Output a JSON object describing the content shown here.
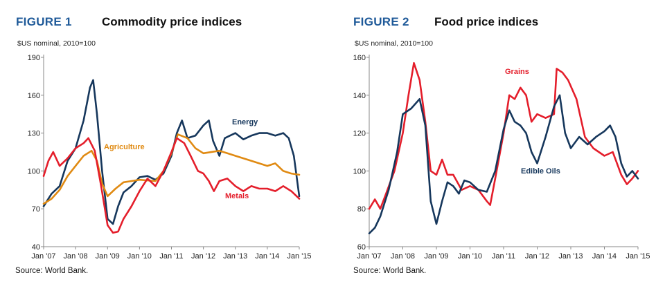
{
  "charts": [
    {
      "figure_label": "FIGURE 1",
      "title": "Commodity price indices",
      "subtitle": "$US nominal, 2010=100",
      "source": "Source: World Bank.",
      "colors": {
        "Energy": "#16375c",
        "Agriculture": "#e08a12",
        "Metals": "#e41e2b"
      }
    },
    {
      "figure_label": "FIGURE 2",
      "title": "Food price indices",
      "subtitle": "$US nominal, 2010=100",
      "source": "Source: World Bank.",
      "colors": {
        "Grains": "#e41e2b",
        "Edible Oils": "#16375c"
      }
    }
  ],
  "chart_data": [
    {
      "type": "line",
      "title": "Commodity price indices",
      "ylabel": "$US nominal, 2010=100",
      "ylim": [
        40,
        190
      ],
      "yticks": [
        40,
        70,
        100,
        130,
        160,
        190
      ],
      "xlim": [
        2007.0,
        2015.0
      ],
      "xticks": [
        "Jan '07",
        "Jan '08",
        "Jan '09",
        "Jan '10",
        "Jan '11",
        "Jan '12",
        "Jan '13",
        "Jan '14",
        "Jan '15"
      ],
      "grid": false,
      "series": [
        {
          "name": "Energy",
          "points": [
            [
              2007.0,
              72
            ],
            [
              2007.25,
              82
            ],
            [
              2007.5,
              88
            ],
            [
              2007.75,
              108
            ],
            [
              2008.0,
              118
            ],
            [
              2008.25,
              140
            ],
            [
              2008.45,
              166
            ],
            [
              2008.55,
              172
            ],
            [
              2008.67,
              145
            ],
            [
              2008.83,
              100
            ],
            [
              2009.0,
              62
            ],
            [
              2009.17,
              58
            ],
            [
              2009.33,
              72
            ],
            [
              2009.5,
              83
            ],
            [
              2009.75,
              88
            ],
            [
              2010.0,
              95
            ],
            [
              2010.25,
              96
            ],
            [
              2010.5,
              93
            ],
            [
              2010.75,
              98
            ],
            [
              2011.0,
              112
            ],
            [
              2011.17,
              130
            ],
            [
              2011.33,
              140
            ],
            [
              2011.5,
              126
            ],
            [
              2011.75,
              128
            ],
            [
              2012.0,
              136
            ],
            [
              2012.17,
              140
            ],
            [
              2012.3,
              124
            ],
            [
              2012.5,
              112
            ],
            [
              2012.67,
              126
            ],
            [
              2012.83,
              128
            ],
            [
              2013.0,
              130
            ],
            [
              2013.25,
              125
            ],
            [
              2013.5,
              128
            ],
            [
              2013.75,
              130
            ],
            [
              2014.0,
              130
            ],
            [
              2014.25,
              128
            ],
            [
              2014.5,
              130
            ],
            [
              2014.67,
              126
            ],
            [
              2014.83,
              112
            ],
            [
              2015.0,
              80
            ]
          ]
        },
        {
          "name": "Agriculture",
          "points": [
            [
              2007.0,
              74
            ],
            [
              2007.25,
              78
            ],
            [
              2007.5,
              85
            ],
            [
              2007.75,
              96
            ],
            [
              2008.0,
              104
            ],
            [
              2008.25,
              112
            ],
            [
              2008.5,
              116
            ],
            [
              2008.67,
              108
            ],
            [
              2008.83,
              90
            ],
            [
              2009.0,
              80
            ],
            [
              2009.25,
              86
            ],
            [
              2009.5,
              91
            ],
            [
              2009.75,
              92
            ],
            [
              2010.0,
              93
            ],
            [
              2010.5,
              92
            ],
            [
              2010.75,
              100
            ],
            [
              2011.0,
              114
            ],
            [
              2011.2,
              129
            ],
            [
              2011.5,
              126
            ],
            [
              2011.75,
              118
            ],
            [
              2012.0,
              114
            ],
            [
              2012.5,
              116
            ],
            [
              2012.75,
              114
            ],
            [
              2013.0,
              112
            ],
            [
              2013.5,
              108
            ],
            [
              2014.0,
              104
            ],
            [
              2014.25,
              106
            ],
            [
              2014.5,
              100
            ],
            [
              2014.75,
              98
            ],
            [
              2015.0,
              97
            ]
          ]
        },
        {
          "name": "Metals",
          "points": [
            [
              2007.0,
              96
            ],
            [
              2007.15,
              108
            ],
            [
              2007.3,
              115
            ],
            [
              2007.5,
              104
            ],
            [
              2007.75,
              110
            ],
            [
              2008.0,
              118
            ],
            [
              2008.25,
              122
            ],
            [
              2008.4,
              126
            ],
            [
              2008.6,
              116
            ],
            [
              2008.8,
              88
            ],
            [
              2009.0,
              57
            ],
            [
              2009.17,
              51
            ],
            [
              2009.33,
              52
            ],
            [
              2009.5,
              62
            ],
            [
              2009.75,
              72
            ],
            [
              2010.0,
              84
            ],
            [
              2010.25,
              94
            ],
            [
              2010.5,
              88
            ],
            [
              2010.75,
              100
            ],
            [
              2011.0,
              115
            ],
            [
              2011.17,
              126
            ],
            [
              2011.4,
              122
            ],
            [
              2011.6,
              112
            ],
            [
              2011.83,
              100
            ],
            [
              2012.0,
              98
            ],
            [
              2012.17,
              92
            ],
            [
              2012.33,
              84
            ],
            [
              2012.5,
              92
            ],
            [
              2012.75,
              94
            ],
            [
              2013.0,
              88
            ],
            [
              2013.25,
              84
            ],
            [
              2013.5,
              88
            ],
            [
              2013.75,
              86
            ],
            [
              2014.0,
              86
            ],
            [
              2014.25,
              84
            ],
            [
              2014.5,
              88
            ],
            [
              2014.75,
              84
            ],
            [
              2015.0,
              78
            ]
          ]
        }
      ]
    },
    {
      "type": "line",
      "title": "Food price indices",
      "ylabel": "$US nominal, 2010=100",
      "ylim": [
        60,
        160
      ],
      "yticks": [
        60,
        80,
        100,
        120,
        140,
        160
      ],
      "xlim": [
        2007.0,
        2015.0
      ],
      "xticks": [
        "Jan '07",
        "Jan '08",
        "Jan '09",
        "Jan '10",
        "Jan '11",
        "Jan '12",
        "Jan '13",
        "Jan '14",
        "Jan '15"
      ],
      "grid": false,
      "series": [
        {
          "name": "Grains",
          "points": [
            [
              2007.0,
              80
            ],
            [
              2007.17,
              85
            ],
            [
              2007.33,
              80
            ],
            [
              2007.5,
              88
            ],
            [
              2007.75,
              100
            ],
            [
              2008.0,
              120
            ],
            [
              2008.17,
              140
            ],
            [
              2008.33,
              157
            ],
            [
              2008.5,
              148
            ],
            [
              2008.67,
              126
            ],
            [
              2008.83,
              100
            ],
            [
              2009.0,
              98
            ],
            [
              2009.17,
              106
            ],
            [
              2009.33,
              98
            ],
            [
              2009.5,
              98
            ],
            [
              2009.75,
              90
            ],
            [
              2010.0,
              92
            ],
            [
              2010.25,
              90
            ],
            [
              2010.5,
              84
            ],
            [
              2010.6,
              82
            ],
            [
              2010.75,
              96
            ],
            [
              2011.0,
              120
            ],
            [
              2011.17,
              140
            ],
            [
              2011.33,
              138
            ],
            [
              2011.5,
              144
            ],
            [
              2011.67,
              140
            ],
            [
              2011.83,
              126
            ],
            [
              2012.0,
              130
            ],
            [
              2012.25,
              128
            ],
            [
              2012.5,
              130
            ],
            [
              2012.58,
              154
            ],
            [
              2012.75,
              152
            ],
            [
              2012.92,
              148
            ],
            [
              2013.17,
              138
            ],
            [
              2013.42,
              118
            ],
            [
              2013.67,
              112
            ],
            [
              2014.0,
              108
            ],
            [
              2014.25,
              110
            ],
            [
              2014.5,
              98
            ],
            [
              2014.67,
              93
            ],
            [
              2014.83,
              96
            ],
            [
              2015.0,
              100
            ]
          ]
        },
        {
          "name": "Edible Oils",
          "points": [
            [
              2007.0,
              67
            ],
            [
              2007.17,
              70
            ],
            [
              2007.33,
              76
            ],
            [
              2007.58,
              90
            ],
            [
              2007.83,
              110
            ],
            [
              2008.0,
              130
            ],
            [
              2008.25,
              133
            ],
            [
              2008.5,
              138
            ],
            [
              2008.67,
              124
            ],
            [
              2008.83,
              84
            ],
            [
              2009.0,
              72
            ],
            [
              2009.17,
              84
            ],
            [
              2009.33,
              94
            ],
            [
              2009.5,
              92
            ],
            [
              2009.67,
              88
            ],
            [
              2009.83,
              95
            ],
            [
              2010.0,
              94
            ],
            [
              2010.25,
              90
            ],
            [
              2010.5,
              89
            ],
            [
              2010.75,
              100
            ],
            [
              2011.0,
              122
            ],
            [
              2011.17,
              132
            ],
            [
              2011.33,
              126
            ],
            [
              2011.5,
              124
            ],
            [
              2011.67,
              120
            ],
            [
              2011.83,
              110
            ],
            [
              2012.0,
              104
            ],
            [
              2012.25,
              118
            ],
            [
              2012.5,
              134
            ],
            [
              2012.67,
              140
            ],
            [
              2012.83,
              120
            ],
            [
              2013.0,
              112
            ],
            [
              2013.25,
              118
            ],
            [
              2013.5,
              114
            ],
            [
              2013.75,
              118
            ],
            [
              2014.0,
              121
            ],
            [
              2014.17,
              124
            ],
            [
              2014.33,
              118
            ],
            [
              2014.5,
              104
            ],
            [
              2014.67,
              97
            ],
            [
              2014.83,
              100
            ],
            [
              2015.0,
              96
            ]
          ]
        }
      ]
    }
  ]
}
